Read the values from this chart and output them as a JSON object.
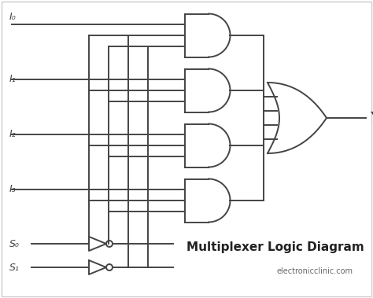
{
  "bg_color": "#ffffff",
  "line_color": "#444444",
  "line_width": 1.4,
  "inputs": [
    "I₀",
    "I₁",
    "I₂",
    "I₃"
  ],
  "selects": [
    "S₀",
    "S₁"
  ],
  "output_label": "Y",
  "title": "Multiplexer Logic Diagram",
  "subtitle": "electronicclinic.com",
  "title_fontsize": 11,
  "subtitle_fontsize": 7,
  "label_fontsize": 9
}
